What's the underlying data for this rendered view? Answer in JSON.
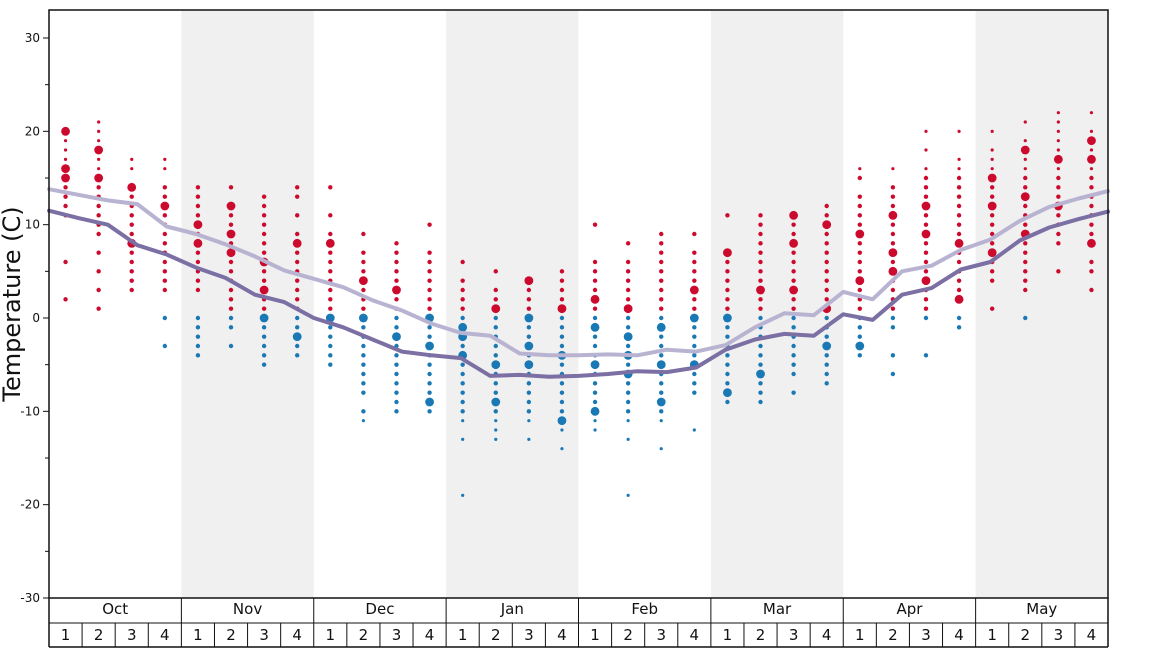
{
  "chart_data": {
    "type": "scatter",
    "ylabel": "Temperature (C)",
    "ylim": [
      -30,
      33
    ],
    "y_ticks": [
      30,
      20,
      10,
      0,
      -10,
      -20,
      -30
    ],
    "months": [
      "Oct",
      "Nov",
      "Dec",
      "Jan",
      "Feb",
      "Mar",
      "Apr",
      "May"
    ],
    "week_labels": [
      "1",
      "2",
      "3",
      "4"
    ],
    "shaded_months": [
      "Nov",
      "Jan",
      "Mar",
      "May"
    ],
    "colors": {
      "warm_dots": "#cc0a2d",
      "cold_dots": "#1a78b4",
      "max_line": "#b9b3d2",
      "min_line": "#7b6fa3",
      "shading": "#f0f0f0"
    },
    "dot_series": [
      {
        "week": "Oct 1",
        "values": [
          20,
          19,
          18,
          17,
          16,
          15,
          14,
          13,
          12,
          11,
          6,
          2
        ],
        "big": [
          20,
          16,
          15
        ]
      },
      {
        "week": "Oct 2",
        "values": [
          21,
          20,
          19,
          18,
          17,
          16,
          15,
          14,
          13,
          12,
          11,
          10,
          9,
          7,
          5,
          3,
          1
        ],
        "big": [
          18,
          15
        ]
      },
      {
        "week": "Oct 3",
        "values": [
          17,
          16,
          14,
          13,
          12,
          11,
          10,
          9,
          8,
          7,
          6,
          5,
          4,
          3
        ],
        "big": [
          14,
          8
        ]
      },
      {
        "week": "Oct 4",
        "values": [
          17,
          16,
          14,
          13,
          12,
          11,
          10,
          9,
          8,
          7,
          6,
          5,
          4,
          3,
          0,
          -3
        ],
        "big": [
          12
        ]
      },
      {
        "week": "Nov 1",
        "values": [
          14,
          13,
          12,
          11,
          10,
          9,
          8,
          7,
          6,
          5,
          4,
          3,
          0,
          -1,
          -2,
          -3,
          -4
        ],
        "big": [
          10,
          8
        ]
      },
      {
        "week": "Nov 2",
        "values": [
          14,
          12,
          11,
          10,
          9,
          8,
          7,
          6,
          5,
          4,
          3,
          2,
          1,
          0,
          -1,
          -3
        ],
        "big": [
          12,
          9,
          7
        ]
      },
      {
        "week": "Nov 3",
        "values": [
          13,
          12,
          11,
          10,
          9,
          8,
          7,
          6,
          5,
          4,
          3,
          2,
          1,
          0,
          -1,
          -2,
          -3,
          -4,
          -5
        ],
        "big": [
          6,
          3,
          0
        ]
      },
      {
        "week": "Nov 4",
        "values": [
          14,
          13,
          11,
          9,
          8,
          7,
          6,
          5,
          4,
          3,
          2,
          1,
          0,
          -1,
          -2,
          -3,
          -4
        ],
        "big": [
          8,
          -2
        ]
      },
      {
        "week": "Dec 1",
        "values": [
          14,
          11,
          9,
          8,
          7,
          6,
          5,
          4,
          3,
          2,
          1,
          0,
          -1,
          -2,
          -3,
          -4,
          -5
        ],
        "big": [
          8,
          0
        ]
      },
      {
        "week": "Dec 2",
        "values": [
          9,
          7,
          6,
          5,
          4,
          3,
          2,
          1,
          0,
          -1,
          -2,
          -3,
          -4,
          -5,
          -6,
          -7,
          -8,
          -10,
          -11
        ],
        "big": [
          4,
          0
        ]
      },
      {
        "week": "Dec 3",
        "values": [
          8,
          7,
          6,
          5,
          4,
          3,
          2,
          1,
          0,
          -1,
          -2,
          -3,
          -4,
          -5,
          -6,
          -7,
          -8,
          -9,
          -10
        ],
        "big": [
          3,
          -2
        ]
      },
      {
        "week": "Dec 4",
        "values": [
          10,
          7,
          6,
          5,
          4,
          3,
          2,
          1,
          0,
          -1,
          -2,
          -3,
          -4,
          -5,
          -6,
          -7,
          -8,
          -9,
          -10
        ],
        "big": [
          0,
          -3,
          -9
        ]
      },
      {
        "week": "Jan 1",
        "values": [
          6,
          4,
          3,
          2,
          1,
          0,
          -1,
          -2,
          -3,
          -4,
          -5,
          -6,
          -7,
          -8,
          -9,
          -10,
          -11,
          -13,
          -19
        ],
        "big": [
          -1,
          -2,
          -4
        ]
      },
      {
        "week": "Jan 2",
        "values": [
          5,
          3,
          2,
          1,
          0,
          -1,
          -2,
          -3,
          -4,
          -5,
          -6,
          -7,
          -8,
          -9,
          -10,
          -11,
          -12,
          -13
        ],
        "big": [
          1,
          -5,
          -9
        ]
      },
      {
        "week": "Jan 3",
        "values": [
          4,
          3,
          2,
          1,
          0,
          -1,
          -2,
          -3,
          -4,
          -5,
          -6,
          -7,
          -8,
          -9,
          -10,
          -11,
          -13
        ],
        "big": [
          4,
          0,
          -3,
          -5
        ]
      },
      {
        "week": "Jan 4",
        "values": [
          5,
          4,
          3,
          2,
          1,
          0,
          -1,
          -2,
          -3,
          -4,
          -5,
          -6,
          -7,
          -8,
          -9,
          -10,
          -11,
          -12,
          -14
        ],
        "big": [
          1,
          -4,
          -11
        ]
      },
      {
        "week": "Feb 1",
        "values": [
          10,
          6,
          5,
          4,
          3,
          2,
          1,
          0,
          -1,
          -2,
          -3,
          -4,
          -5,
          -6,
          -7,
          -8,
          -9,
          -10,
          -11,
          -12
        ],
        "big": [
          2,
          -1,
          -5,
          -10
        ]
      },
      {
        "week": "Feb 2",
        "values": [
          8,
          6,
          5,
          4,
          3,
          2,
          1,
          0,
          -1,
          -2,
          -3,
          -4,
          -5,
          -6,
          -7,
          -8,
          -9,
          -10,
          -11,
          -13,
          -19
        ],
        "big": [
          1,
          -2,
          -4,
          -6
        ]
      },
      {
        "week": "Feb 3",
        "values": [
          9,
          8,
          7,
          6,
          5,
          4,
          3,
          2,
          1,
          0,
          -1,
          -2,
          -3,
          -4,
          -5,
          -6,
          -7,
          -8,
          -9,
          -10,
          -11,
          -14
        ],
        "big": [
          -1,
          -5,
          -9
        ]
      },
      {
        "week": "Feb 4",
        "values": [
          9,
          7,
          6,
          5,
          4,
          3,
          2,
          1,
          0,
          -1,
          -2,
          -3,
          -4,
          -5,
          -6,
          -7,
          -8,
          -12
        ],
        "big": [
          3,
          0,
          -5
        ]
      },
      {
        "week": "Mar 1",
        "values": [
          11,
          7,
          6,
          5,
          4,
          3,
          2,
          1,
          0,
          -1,
          -2,
          -3,
          -4,
          -5,
          -6,
          -7,
          -8,
          -9
        ],
        "big": [
          7,
          0,
          -8
        ]
      },
      {
        "week": "Mar 2",
        "values": [
          11,
          10,
          9,
          8,
          7,
          6,
          5,
          4,
          3,
          2,
          1,
          0,
          -1,
          -2,
          -3,
          -4,
          -5,
          -6,
          -7,
          -8,
          -9
        ],
        "big": [
          3,
          -6
        ]
      },
      {
        "week": "Mar 3",
        "values": [
          11,
          10,
          9,
          8,
          7,
          6,
          5,
          4,
          3,
          2,
          1,
          0,
          -1,
          -2,
          -3,
          -4,
          -5,
          -6,
          -8
        ],
        "big": [
          11,
          8,
          3
        ]
      },
      {
        "week": "Mar 4",
        "values": [
          12,
          11,
          10,
          9,
          8,
          7,
          6,
          5,
          4,
          3,
          2,
          1,
          0,
          -1,
          -2,
          -3,
          -4,
          -5,
          -6,
          -7
        ],
        "big": [
          10,
          1,
          -3
        ]
      },
      {
        "week": "Apr 1",
        "values": [
          16,
          15,
          13,
          12,
          11,
          10,
          9,
          8,
          7,
          6,
          5,
          4,
          3,
          2,
          1,
          0,
          -1,
          -2,
          -3,
          -4
        ],
        "big": [
          9,
          4,
          -3
        ]
      },
      {
        "week": "Apr 2",
        "values": [
          16,
          14,
          13,
          12,
          11,
          10,
          9,
          8,
          7,
          6,
          5,
          4,
          3,
          2,
          1,
          0,
          -1,
          -4,
          -6
        ],
        "big": [
          11,
          7,
          5
        ]
      },
      {
        "week": "Apr 3",
        "values": [
          20,
          18,
          16,
          15,
          14,
          13,
          12,
          11,
          10,
          9,
          8,
          7,
          6,
          5,
          4,
          3,
          2,
          1,
          0,
          -4
        ],
        "big": [
          12,
          9,
          4
        ]
      },
      {
        "week": "Apr 4",
        "values": [
          20,
          17,
          16,
          15,
          14,
          13,
          12,
          11,
          10,
          9,
          8,
          7,
          6,
          5,
          4,
          3,
          2,
          0,
          -1
        ],
        "big": [
          8,
          2
        ]
      },
      {
        "week": "May 1",
        "values": [
          20,
          18,
          17,
          16,
          15,
          14,
          13,
          12,
          11,
          10,
          9,
          8,
          7,
          6,
          5,
          4,
          1
        ],
        "big": [
          15,
          12,
          7
        ]
      },
      {
        "week": "May 2",
        "values": [
          21,
          19,
          18,
          17,
          16,
          15,
          14,
          13,
          12,
          11,
          10,
          9,
          8,
          7,
          6,
          5,
          4,
          3,
          0
        ],
        "big": [
          18,
          13,
          9
        ]
      },
      {
        "week": "May 3",
        "values": [
          22,
          21,
          20,
          19,
          18,
          17,
          16,
          15,
          14,
          13,
          12,
          11,
          10,
          9,
          8,
          5
        ],
        "big": [
          17,
          12
        ]
      },
      {
        "week": "May 4",
        "values": [
          22,
          20,
          19,
          18,
          17,
          16,
          15,
          14,
          13,
          12,
          11,
          10,
          9,
          8,
          6,
          5,
          3
        ],
        "big": [
          19,
          17,
          8
        ]
      }
    ],
    "max_line_values": [
      13.8,
      13.2,
      12.6,
      12.2,
      9.8,
      9.0,
      7.9,
      6.6,
      5.1,
      4.2,
      3.3,
      1.9,
      0.8,
      -0.6,
      -1.6,
      -1.9,
      -3.8,
      -4.0,
      -4.0,
      -3.9,
      -4.0,
      -3.4,
      -3.6,
      -2.9,
      -1.0,
      0.5,
      0.3,
      2.8,
      2.0,
      5.0,
      5.6,
      7.3,
      8.4,
      10.4,
      11.9,
      12.8,
      13.6
    ],
    "min_line_values": [
      11.5,
      10.7,
      10.0,
      7.8,
      6.8,
      5.4,
      4.3,
      2.5,
      1.7,
      0.0,
      -1.0,
      -2.3,
      -3.6,
      -4.0,
      -4.3,
      -6.2,
      -6.1,
      -6.3,
      -6.2,
      -6.0,
      -5.7,
      -5.8,
      -5.3,
      -3.4,
      -2.3,
      -1.7,
      -1.9,
      0.4,
      -0.2,
      2.5,
      3.2,
      5.2,
      6.0,
      8.3,
      9.7,
      10.6,
      11.4
    ]
  }
}
